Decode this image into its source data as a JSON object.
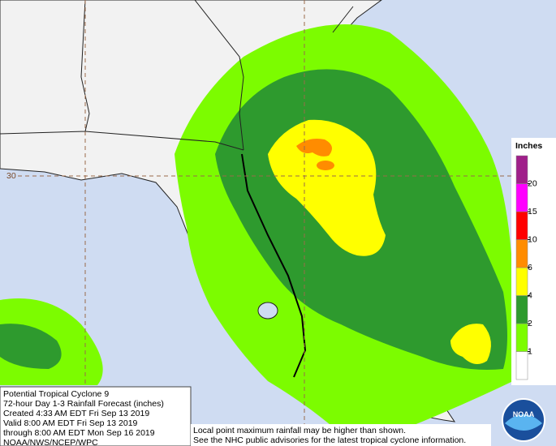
{
  "map": {
    "latitude_label": "30",
    "legend": {
      "title": "Inches",
      "ticks": [
        1,
        2,
        4,
        6,
        10,
        15,
        20
      ],
      "colors": [
        "#ffffff",
        "#7cfc00",
        "#2e9a2e",
        "#ffff00",
        "#ff8c00",
        "#ff0000",
        "#ff00ff",
        "#a0208a"
      ]
    },
    "info": [
      "Potential Tropical Cyclone 9",
      "72-hour Day 1-3 Rainfall Forecast (inches)",
      "Created 4:33 AM EDT Fri Sep 13 2019",
      "Valid 8:00 AM EDT Fri Sep 13 2019",
      "through 8:00 AM EDT Mon Sep 16 2019",
      "NOAA/NWS/NCEP/WPC"
    ],
    "notes": [
      "Local point maximum rainfall may be higher than shown.",
      "See the NHC public advisories for the latest tropical cyclone information."
    ],
    "logo": "NOAA"
  }
}
